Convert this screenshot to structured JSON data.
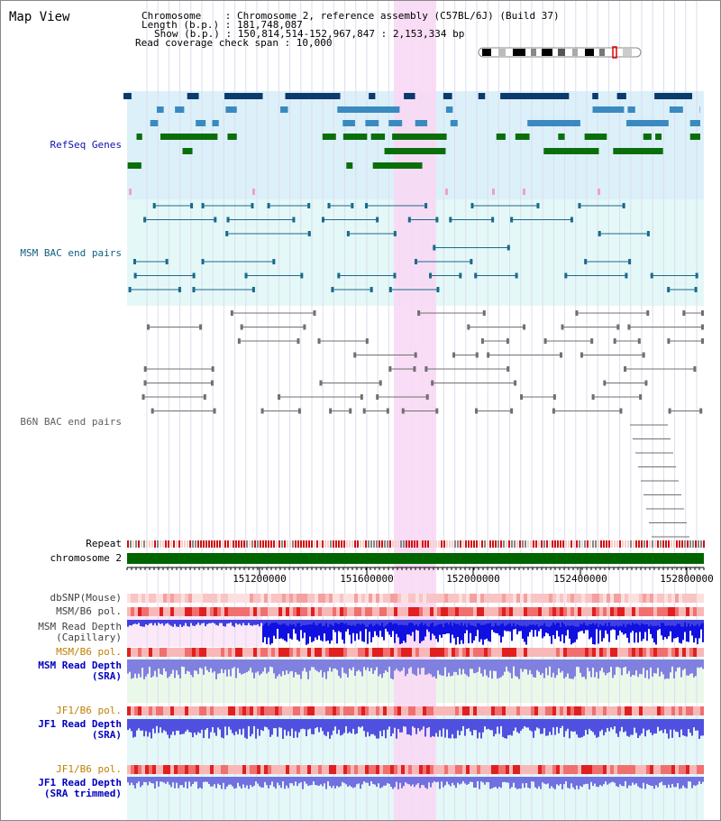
{
  "header": {
    "title": "Map View",
    "chromosome_line": "Chromosome    : Chromosome 2, reference assembly (C57BL/6J) (Build 37)",
    "length_line": "Length (b.p.) : 181,748,087",
    "show_line": "Show (b.p.) : 150,814,514-152,967,847 : 2,153,334 bp",
    "span_line": "Read coverage check span : 10,000"
  },
  "sections": {
    "refseq": "RefSeq Genes",
    "msm_bac": "MSM BAC end pairs",
    "b6n_bac": "B6N BAC end pairs"
  },
  "tracks": {
    "repeat": "Repeat",
    "chromosome": "chromosome 2",
    "dbsnp": "dbSNP(Mouse)",
    "msm_b6_pol_1": "MSM/B6 pol.",
    "msm_depth_cap": "MSM Read Depth\n(Capillary)",
    "msm_b6_pol_2": "MSM/B6 pol.",
    "msm_depth_sra": "MSM Read Depth\n(SRA)",
    "jf1_b6_pol_1": "JF1/B6 pol.",
    "jf1_depth_sra": "JF1 Read Depth\n(SRA)",
    "jf1_b6_pol_2": "JF1/B6 pol.",
    "jf1_depth_trim": "JF1 Read Depth\n(SRA trimmed)"
  },
  "axis": {
    "ticks": [
      "151200000",
      "151600000",
      "152000000",
      "152400000",
      "152800000"
    ]
  },
  "colors": {
    "refseq_label": "#1010b0",
    "msm_label": "#106080",
    "b6n_label": "#606060",
    "pol_label": "#c08000",
    "depth_label": "#0000c0",
    "highlight": "#f8d8f4",
    "chromosome_bar": "#006400"
  }
}
